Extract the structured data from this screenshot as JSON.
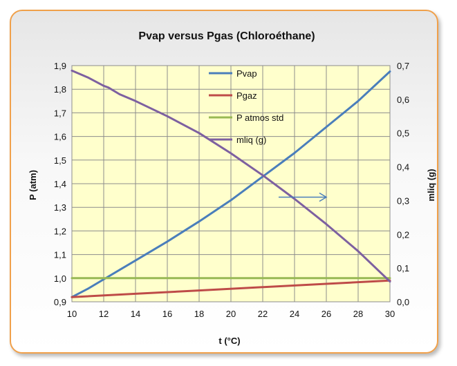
{
  "chart_data": {
    "type": "line",
    "title": "Pvap versus Pgas (Chloroéthane)",
    "xlabel": "t (°C)",
    "ylabel": "P (atm)",
    "y2label": "mliq (g)",
    "xlim": [
      10,
      30
    ],
    "ylim": [
      0.9,
      1.9
    ],
    "y2lim": [
      0.0,
      0.7
    ],
    "x_ticks": [
      10,
      12,
      14,
      16,
      18,
      20,
      22,
      24,
      26,
      28,
      30
    ],
    "x_tick_labels": [
      "10",
      "12",
      "14",
      "16",
      "18",
      "20",
      "22",
      "24",
      "26",
      "28",
      "30"
    ],
    "y_ticks": [
      0.9,
      1.0,
      1.1,
      1.2,
      1.3,
      1.4,
      1.5,
      1.6,
      1.7,
      1.8,
      1.9
    ],
    "y_tick_labels": [
      "0,9",
      "1,0",
      "1,1",
      "1,2",
      "1,3",
      "1,4",
      "1,5",
      "1,6",
      "1,7",
      "1,8",
      "1,9"
    ],
    "y2_ticks": [
      0.0,
      0.1,
      0.2,
      0.3,
      0.4,
      0.5,
      0.6,
      0.7
    ],
    "y2_tick_labels": [
      "0,0",
      "0,1",
      "0,2",
      "0,3",
      "0,4",
      "0,5",
      "0,6",
      "0,7"
    ],
    "grid": true,
    "legend_position": "top-center",
    "plot_background": "#ffffcc",
    "series": [
      {
        "name": "Pvap",
        "color": "#4a7ebb",
        "axis": "left",
        "points": [
          [
            10,
            0.92
          ],
          [
            11,
            0.955
          ],
          [
            12,
            0.995
          ],
          [
            13,
            1.035
          ],
          [
            14,
            1.075
          ],
          [
            16,
            1.155
          ],
          [
            18,
            1.24
          ],
          [
            20,
            1.33
          ],
          [
            22,
            1.43
          ],
          [
            24,
            1.53
          ],
          [
            26,
            1.64
          ],
          [
            28,
            1.75
          ],
          [
            30,
            1.875
          ]
        ]
      },
      {
        "name": "Pgaz",
        "color": "#be4b48",
        "axis": "left",
        "points": [
          [
            10,
            0.92
          ],
          [
            14,
            0.934
          ],
          [
            18,
            0.948
          ],
          [
            22,
            0.962
          ],
          [
            26,
            0.976
          ],
          [
            30,
            0.99
          ]
        ]
      },
      {
        "name": "P atmos std",
        "color": "#98b954",
        "axis": "left",
        "points": [
          [
            10,
            1.0
          ],
          [
            30,
            1.0
          ]
        ]
      },
      {
        "name": "mliq (g)",
        "color": "#7d60a0",
        "axis": "right",
        "points": [
          [
            10,
            0.685
          ],
          [
            11,
            0.665
          ],
          [
            12,
            0.64
          ],
          [
            12.3,
            0.635
          ],
          [
            13,
            0.615
          ],
          [
            14,
            0.595
          ],
          [
            16,
            0.55
          ],
          [
            18,
            0.5
          ],
          [
            20,
            0.44
          ],
          [
            22,
            0.375
          ],
          [
            24,
            0.305
          ],
          [
            26,
            0.23
          ],
          [
            28,
            0.15
          ],
          [
            30,
            0.06
          ]
        ]
      }
    ],
    "annotation": {
      "type": "arrow",
      "from": [
        23,
        0.31
      ],
      "to": [
        26,
        0.31
      ],
      "axis": "right",
      "color": "#4a7ebb"
    }
  }
}
